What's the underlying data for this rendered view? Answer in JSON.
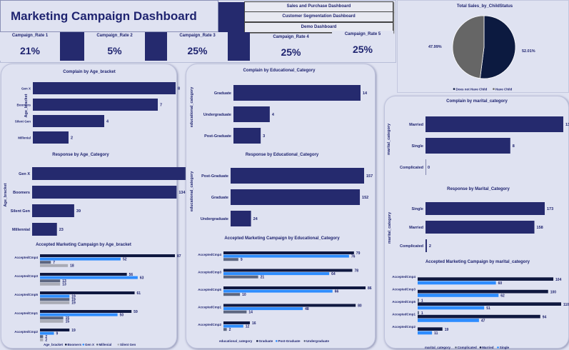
{
  "header": {
    "title": "Marketing Campaign Dashboard",
    "nav": [
      "Sales and Purchase Dashboard",
      "Customer Segmentation Dashboard",
      "Demo Dashboard"
    ]
  },
  "rates": [
    {
      "label": "Campaign_Rate 1",
      "value": "21%"
    },
    {
      "label": "Campaign_Rate 2",
      "value": "5%"
    },
    {
      "label": "Campaign_Rate 3",
      "value": "25%"
    },
    {
      "label": "Campaign_Rate 4",
      "value": "25%"
    },
    {
      "label": "Campaign_Rate 5",
      "value": "25%"
    }
  ],
  "colors": {
    "navy": "#252a6e",
    "dark": "#0f1840",
    "blue": "#2d8cff",
    "gray": "#5c6680",
    "lightgray": "#a9abb5",
    "pie_gray": "#666666",
    "pie_dark": "#0c1a40"
  },
  "chart_data": [
    {
      "id": "pie",
      "type": "pie",
      "title": "Total Sales_by_ChildStatus",
      "slices": [
        {
          "name": "Does not Have Child",
          "value": 52.01,
          "label": "52.01%"
        },
        {
          "name": "Have Child",
          "value": 47.99,
          "label": "47.99%"
        }
      ]
    },
    {
      "id": "c1",
      "type": "bar",
      "title": "Complain by Age_bracket",
      "ylabel": "Age_bracket",
      "categories": [
        "Gen X",
        "Boomers",
        "Silent Gen",
        "Millenial"
      ],
      "values": [
        8,
        7,
        4,
        2
      ]
    },
    {
      "id": "c2",
      "type": "bar",
      "title": "Response by Age_Category",
      "ylabel": "Age_bracket",
      "categories": [
        "Gen X",
        "Boomers",
        "Silent Gen",
        "Millennial"
      ],
      "values": [
        147,
        134,
        39,
        23
      ]
    },
    {
      "id": "c3",
      "type": "bar",
      "title": "Accepted Marketing Campaign by Age_bracket",
      "legend_title": "Age_bracket",
      "categories": [
        "AcceptedCmp4",
        "AcceptedCmp3",
        "AcceptedCmp5",
        "AcceptedCmp1",
        "AcceptedCmp2"
      ],
      "series": [
        {
          "name": "Boomers",
          "values": [
            87,
            56,
            61,
            59,
            19
          ]
        },
        {
          "name": "Gen X",
          "values": [
            52,
            63,
            19,
            50,
            9
          ]
        },
        {
          "name": "Millenial",
          "values": [
            7,
            13,
            19,
            15,
            2
          ]
        },
        {
          "name": "Silent Gen",
          "values": [
            18,
            13,
            19,
            15,
            2
          ]
        }
      ]
    },
    {
      "id": "c4",
      "type": "bar",
      "title": "Complain by Educational_Category",
      "ylabel": "educational_category",
      "categories": [
        "Graduate",
        "Undergraduate",
        "Post-Graduate"
      ],
      "values": [
        14,
        4,
        3
      ]
    },
    {
      "id": "c5",
      "type": "bar",
      "title": "Response by Educational_Category",
      "ylabel": "educational_category",
      "categories": [
        "Post-Graduate",
        "Graduate",
        "Undergraduate"
      ],
      "values": [
        157,
        152,
        24
      ]
    },
    {
      "id": "c6",
      "type": "bar",
      "title": "Accepted Marketing Campaign by Educational_Category",
      "legend_title": "educational_category",
      "categories": [
        "AcceptedCmp4",
        "AcceptedCmp3",
        "AcceptedCmp5",
        "AcceptedCmp1",
        "AcceptedCmp2"
      ],
      "series": [
        {
          "name": "Graduate",
          "values": [
            79,
            78,
            86,
            80,
            16
          ]
        },
        {
          "name": "Post-Graduate",
          "values": [
            76,
            64,
            66,
            48,
            12
          ]
        },
        {
          "name": "Undergraduate",
          "values": [
            9,
            21,
            10,
            14,
            2
          ]
        }
      ]
    },
    {
      "id": "c7",
      "type": "bar",
      "title": "Complain by marital_category",
      "ylabel": "marital_category",
      "categories": [
        "Married",
        "Single",
        "Complicated"
      ],
      "values": [
        13,
        8,
        0
      ]
    },
    {
      "id": "c8",
      "type": "bar",
      "title": "Response by Marital_Category",
      "ylabel": "marital_category",
      "categories": [
        "Single",
        "Married",
        "Complicated"
      ],
      "values": [
        173,
        158,
        2
      ]
    },
    {
      "id": "c9",
      "type": "bar",
      "title": "Accepted Marketing Campaign by marital_category",
      "legend_title": "marital_category",
      "categories": [
        "AcceptedCmp4",
        "AcceptedCmp3",
        "AcceptedCmp5",
        "AcceptedCmp1",
        "AcceptedCmp2"
      ],
      "series": [
        {
          "name": "Complicated",
          "values": [
            null,
            null,
            1,
            1,
            null
          ]
        },
        {
          "name": "Married",
          "values": [
            104,
            100,
            110,
            94,
            19
          ]
        },
        {
          "name": "Single",
          "values": [
            60,
            62,
            51,
            47,
            11
          ]
        }
      ]
    }
  ]
}
